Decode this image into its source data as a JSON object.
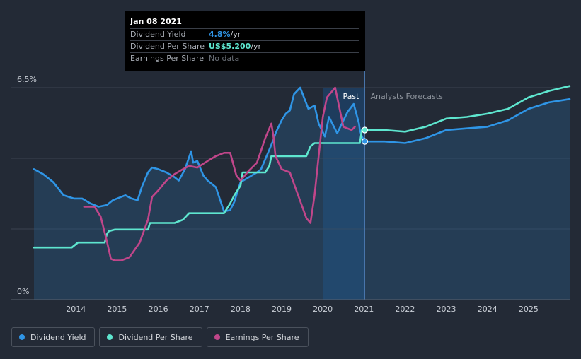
{
  "tooltip": {
    "date": "Jan 08 2021",
    "rows": [
      {
        "label": "Dividend Yield",
        "value": "4.8%",
        "unit": " /yr",
        "color": "#2f95e6"
      },
      {
        "label": "Dividend Per Share",
        "value": "US$5.200",
        "unit": " /yr",
        "color": "#5ee6cf"
      },
      {
        "label": "Earnings Per Share",
        "value": "No data",
        "unit": "",
        "color": "#6b7078"
      }
    ]
  },
  "labels": {
    "past": "Past",
    "forecast": "Analysts Forecasts"
  },
  "legend": [
    {
      "label": "Dividend Yield",
      "color": "#2f95e6"
    },
    {
      "label": "Dividend Per Share",
      "color": "#5ee6cf"
    },
    {
      "label": "Earnings Per Share",
      "color": "#c0468a"
    }
  ],
  "colors": {
    "background": "#232a36",
    "past_highlight": "#1b4a7e",
    "gridline": "#3b4250",
    "axis_text": "#c9ced6"
  },
  "chart_data": {
    "type": "line",
    "title": "",
    "ylim": [
      0,
      6.5
    ],
    "yticks": [
      "0%",
      "6.5%"
    ],
    "x_ticks": [
      "2014",
      "2015",
      "2016",
      "2017",
      "2018",
      "2019",
      "2020",
      "2021",
      "2022",
      "2023",
      "2024",
      "2025"
    ],
    "x_range": [
      2012.98,
      2026.0
    ],
    "past_start": 2020.0,
    "today": 2021.02,
    "series": [
      {
        "name": "Dividend Yield",
        "color": "#2f95e6",
        "fill": true,
        "marker_x": 2021.02,
        "x": [
          2012.98,
          2013.2,
          2013.45,
          2013.7,
          2013.95,
          2014.15,
          2014.35,
          2014.55,
          2014.75,
          2014.9,
          2015.1,
          2015.2,
          2015.35,
          2015.5,
          2015.6,
          2015.75,
          2015.85,
          2016.0,
          2016.2,
          2016.4,
          2016.5,
          2016.65,
          2016.8,
          2016.85,
          2016.95,
          2017.1,
          2017.2,
          2017.4,
          2017.6,
          2017.75,
          2017.85,
          2018.0,
          2018.2,
          2018.4,
          2018.5,
          2018.7,
          2018.8,
          2018.85,
          2019.0,
          2019.1,
          2019.2,
          2019.3,
          2019.45,
          2019.65,
          2019.8,
          2019.9,
          2020.05,
          2020.15,
          2020.35,
          2020.6,
          2020.75,
          2020.88,
          2020.9,
          2020.95,
          2021.02,
          2021.5,
          2022.0,
          2022.5,
          2023.0,
          2023.5,
          2024.0,
          2024.5,
          2025.0,
          2025.5,
          2026.0
        ],
        "y": [
          4.0,
          3.85,
          3.6,
          3.2,
          3.1,
          3.1,
          2.95,
          2.85,
          2.9,
          3.05,
          3.15,
          3.2,
          3.1,
          3.05,
          3.45,
          3.9,
          4.05,
          4.0,
          3.9,
          3.75,
          3.65,
          4.0,
          4.55,
          4.2,
          4.25,
          3.8,
          3.65,
          3.45,
          2.7,
          2.75,
          3.0,
          3.6,
          3.75,
          3.9,
          4.0,
          4.6,
          4.9,
          5.1,
          5.5,
          5.7,
          5.8,
          6.3,
          6.5,
          5.85,
          5.95,
          5.4,
          5.0,
          5.6,
          5.1,
          5.75,
          6.0,
          5.4,
          5.2,
          5.0,
          4.85,
          4.85,
          4.8,
          4.95,
          5.2,
          5.25,
          5.3,
          5.5,
          5.85,
          6.05,
          6.15
        ]
      },
      {
        "name": "Dividend Per Share",
        "color": "#5ee6cf",
        "fill": false,
        "marker_x": 2021.02,
        "x": [
          2012.98,
          2013.9,
          2014.05,
          2014.3,
          2014.7,
          2014.75,
          2014.8,
          2014.95,
          2015.3,
          2015.75,
          2015.8,
          2015.9,
          2016.4,
          2016.6,
          2016.75,
          2016.9,
          2017.6,
          2017.75,
          2017.85,
          2018.0,
          2018.05,
          2018.6,
          2018.7,
          2018.75,
          2019.6,
          2019.7,
          2019.8,
          2020.9,
          2020.95,
          2021.02,
          2021.5,
          2022.0,
          2022.5,
          2023.0,
          2023.5,
          2024.0,
          2024.5,
          2025.0,
          2025.5,
          2026.0
        ],
        "y": [
          1.6,
          1.6,
          1.75,
          1.75,
          1.75,
          2.0,
          2.1,
          2.15,
          2.15,
          2.15,
          2.35,
          2.35,
          2.35,
          2.45,
          2.65,
          2.65,
          2.65,
          2.95,
          3.2,
          3.5,
          3.9,
          3.9,
          4.1,
          4.4,
          4.4,
          4.7,
          4.8,
          4.8,
          5.2,
          5.2,
          5.2,
          5.15,
          5.3,
          5.55,
          5.6,
          5.7,
          5.85,
          6.2,
          6.4,
          6.55
        ]
      },
      {
        "name": "Earnings Per Share",
        "color": "#c0468a",
        "fill": false,
        "x": [
          2014.2,
          2014.45,
          2014.6,
          2014.75,
          2014.85,
          2014.95,
          2015.1,
          2015.3,
          2015.55,
          2015.75,
          2015.85,
          2016.0,
          2016.2,
          2016.4,
          2016.6,
          2016.75,
          2016.95,
          2017.2,
          2017.4,
          2017.6,
          2017.75,
          2017.9,
          2018.0,
          2018.2,
          2018.4,
          2018.6,
          2018.75,
          2018.8,
          2018.85,
          2019.0,
          2019.2,
          2019.4,
          2019.6,
          2019.7,
          2019.8,
          2019.9,
          2020.0,
          2020.1,
          2020.3,
          2020.5,
          2020.7,
          2020.78
        ],
        "y": [
          2.85,
          2.85,
          2.55,
          1.8,
          1.25,
          1.2,
          1.2,
          1.3,
          1.75,
          2.45,
          3.15,
          3.35,
          3.65,
          3.85,
          4.0,
          4.1,
          4.05,
          4.25,
          4.4,
          4.5,
          4.5,
          3.8,
          3.65,
          3.95,
          4.2,
          4.95,
          5.4,
          5.0,
          4.4,
          4.0,
          3.9,
          3.2,
          2.5,
          2.35,
          3.2,
          4.4,
          5.6,
          6.2,
          6.5,
          5.3,
          5.2,
          5.3
        ]
      }
    ]
  }
}
